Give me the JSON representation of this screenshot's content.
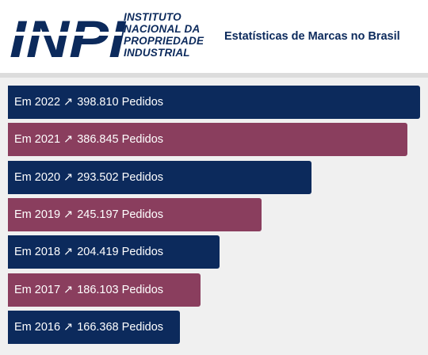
{
  "header": {
    "logo_letters": "INPI",
    "logo_lines": [
      "INSTITUTO",
      "NACIONAL DA",
      "PROPRIEDADE",
      "INDUSTRIAL"
    ],
    "title": "Estatísticas de Marcas no Brasil"
  },
  "colors": {
    "navy": "#0c2a5c",
    "plum": "#8a3e5e",
    "brand": "#0c2a5c"
  },
  "chart_data": {
    "type": "bar",
    "orientation": "horizontal",
    "categories": [
      "2022",
      "2021",
      "2020",
      "2019",
      "2018",
      "2017",
      "2016"
    ],
    "values": [
      398810,
      386845,
      293502,
      245197,
      204419,
      186103,
      166368
    ],
    "labels": [
      {
        "prefix": "Em 2022",
        "arrow": "↗",
        "value_text": "398.810 Pedidos"
      },
      {
        "prefix": "Em 2021",
        "arrow": "↗",
        "value_text": "386.845 Pedidos"
      },
      {
        "prefix": "Em 2020",
        "arrow": "↗",
        "value_text": "293.502 Pedidos"
      },
      {
        "prefix": "Em 2019",
        "arrow": "↗",
        "value_text": "245.197 Pedidos"
      },
      {
        "prefix": "Em 2018",
        "arrow": "↗",
        "value_text": "204.419 Pedidos"
      },
      {
        "prefix": "Em 2017",
        "arrow": "↗",
        "value_text": "186.103 Pedidos"
      },
      {
        "prefix": "Em 2016",
        "arrow": "↗",
        "value_text": "166.368 Pedidos"
      }
    ],
    "bar_colors": [
      "#0c2a5c",
      "#8a3e5e",
      "#0c2a5c",
      "#8a3e5e",
      "#0c2a5c",
      "#8a3e5e",
      "#0c2a5c"
    ],
    "grid": false,
    "legend": "none"
  }
}
